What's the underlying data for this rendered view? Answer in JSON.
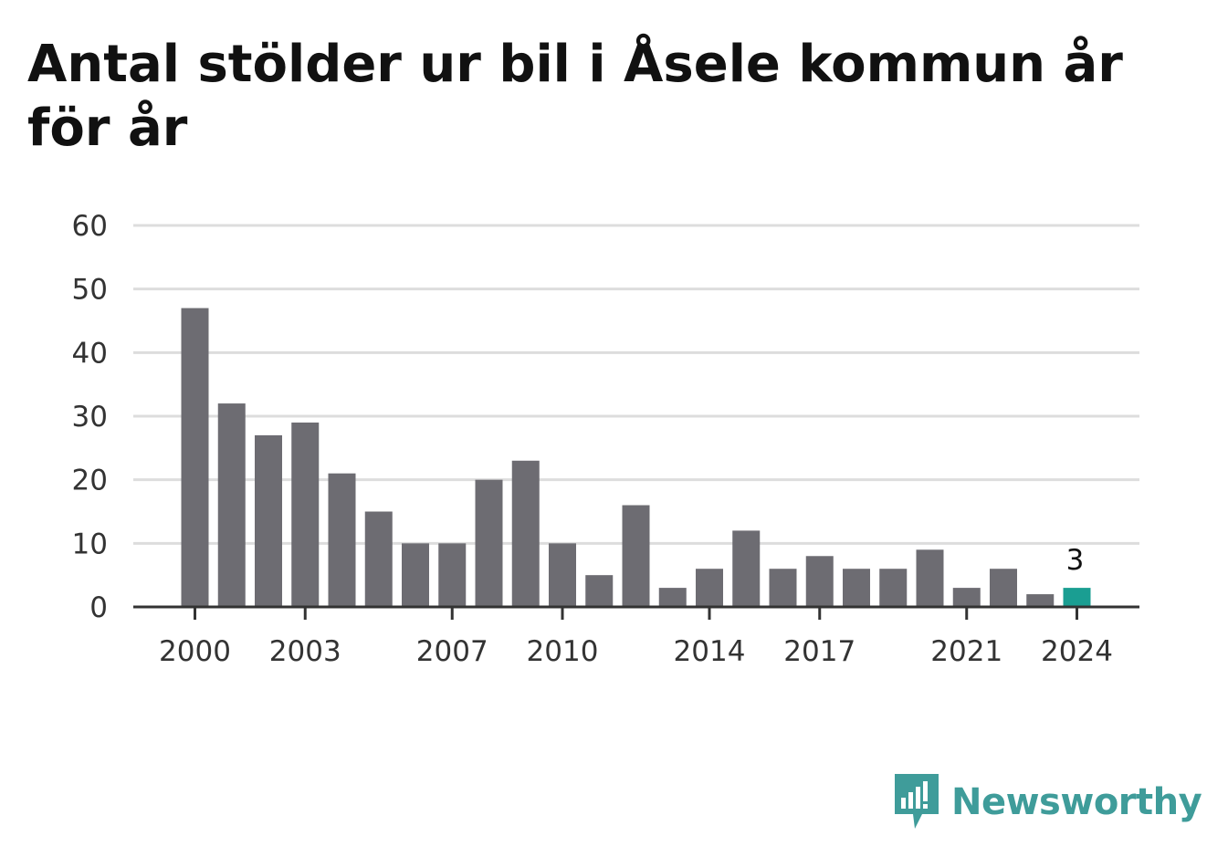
{
  "chart_data": {
    "type": "bar",
    "title": "Antal stölder ur bil i Åsele kommun år för år",
    "categories": [
      "2000",
      "2001",
      "2002",
      "2003",
      "2004",
      "2005",
      "2006",
      "2007",
      "2008",
      "2009",
      "2010",
      "2011",
      "2012",
      "2013",
      "2014",
      "2015",
      "2016",
      "2017",
      "2018",
      "2019",
      "2020",
      "2021",
      "2022",
      "2023",
      "2024"
    ],
    "values": [
      47,
      32,
      27,
      29,
      21,
      15,
      10,
      10,
      20,
      23,
      10,
      5,
      16,
      3,
      6,
      12,
      6,
      8,
      6,
      6,
      9,
      3,
      6,
      2,
      3
    ],
    "xtick_labels": [
      "2000",
      "2003",
      "2007",
      "2010",
      "2014",
      "2017",
      "2021",
      "2024"
    ],
    "yticks": [
      0,
      10,
      20,
      30,
      40,
      50,
      60
    ],
    "ylim": [
      0,
      60
    ],
    "grid": true,
    "bar_color": "#6d6c72",
    "highlight_color": "#1a9e92",
    "highlight_category": "2024",
    "data_labels": [
      {
        "category": "2024",
        "text": "3"
      }
    ]
  },
  "brand": {
    "name": "Newsworthy",
    "icon": "newsworthy-logo-icon",
    "color": "#3f9c9a"
  }
}
